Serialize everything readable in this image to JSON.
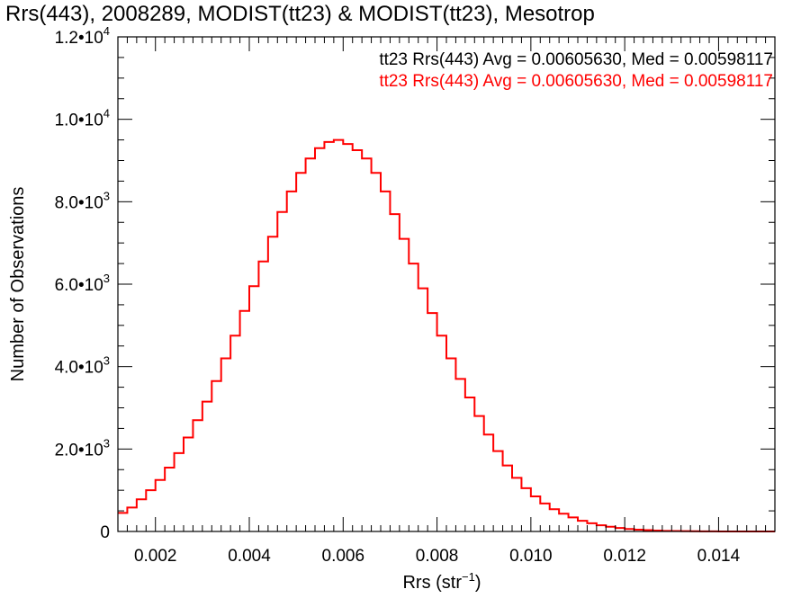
{
  "title": "Rrs(443), 2008289, MODIST(tt23) & MODIST(tt23), Mesotrop",
  "chart_data": {
    "type": "line",
    "title": "Rrs(443), 2008289, MODIST(tt23) & MODIST(tt23), Mesotrop",
    "xlabel": "Rrs (str",
    "xlabel_sup": "−1",
    "xlabel_close": ")",
    "ylabel": "Number of Observations",
    "xlim": [
      0.0012,
      0.0152
    ],
    "ylim": [
      0,
      12000
    ],
    "grid": false,
    "x_ticks": [
      {
        "value": 0.002,
        "label": "0.002"
      },
      {
        "value": 0.004,
        "label": "0.004"
      },
      {
        "value": 0.006,
        "label": "0.006"
      },
      {
        "value": 0.008,
        "label": "0.008"
      },
      {
        "value": 0.01,
        "label": "0.010"
      },
      {
        "value": 0.012,
        "label": "0.012"
      },
      {
        "value": 0.014,
        "label": "0.014"
      }
    ],
    "y_ticks": [
      {
        "value": 0,
        "mant": "0",
        "exp": ""
      },
      {
        "value": 2000,
        "mant": "2.0•10",
        "exp": "3"
      },
      {
        "value": 4000,
        "mant": "4.0•10",
        "exp": "3"
      },
      {
        "value": 6000,
        "mant": "6.0•10",
        "exp": "3"
      },
      {
        "value": 8000,
        "mant": "8.0•10",
        "exp": "3"
      },
      {
        "value": 10000,
        "mant": "1.0•10",
        "exp": "4"
      },
      {
        "value": 12000,
        "mant": "1.2•10",
        "exp": "4"
      }
    ],
    "legend": [
      {
        "text": "tt23 Rrs(443) Avg = 0.00605630, Med = 0.00598117",
        "color": "#000000"
      },
      {
        "text": "tt23 Rrs(443) Avg = 0.00605630, Med = 0.00598117",
        "color": "#ff0000"
      }
    ],
    "legend_position": "top-right",
    "series": [
      {
        "color": "#ff0000",
        "style": "step",
        "x": [
          0.0012,
          0.0014,
          0.0016,
          0.0018,
          0.002,
          0.0022,
          0.0024,
          0.0026,
          0.0028,
          0.003,
          0.0032,
          0.0034,
          0.0036,
          0.0038,
          0.004,
          0.0042,
          0.0044,
          0.0046,
          0.0048,
          0.005,
          0.0052,
          0.0054,
          0.0056,
          0.0058,
          0.006,
          0.0062,
          0.0064,
          0.0066,
          0.0068,
          0.007,
          0.0072,
          0.0074,
          0.0076,
          0.0078,
          0.008,
          0.0082,
          0.0084,
          0.0086,
          0.0088,
          0.009,
          0.0092,
          0.0094,
          0.0096,
          0.0098,
          0.01,
          0.0102,
          0.0104,
          0.0106,
          0.0108,
          0.011,
          0.0112,
          0.0114,
          0.0116,
          0.0118,
          0.012,
          0.0122,
          0.0124,
          0.0126,
          0.0128,
          0.013,
          0.0132,
          0.0134,
          0.0136,
          0.0138,
          0.014,
          0.0142,
          0.0144,
          0.0146,
          0.0148,
          0.015,
          0.0152
        ],
        "y": [
          450,
          580,
          780,
          1000,
          1250,
          1550,
          1900,
          2280,
          2700,
          3150,
          3650,
          4200,
          4750,
          5350,
          5950,
          6550,
          7150,
          7750,
          8250,
          8700,
          9050,
          9300,
          9450,
          9500,
          9400,
          9250,
          9050,
          8700,
          8250,
          7700,
          7100,
          6500,
          5900,
          5300,
          4750,
          4200,
          3700,
          3250,
          2800,
          2350,
          1950,
          1600,
          1300,
          1050,
          850,
          680,
          540,
          430,
          340,
          260,
          200,
          150,
          115,
          85,
          60,
          45,
          32,
          22,
          15,
          10,
          7,
          5,
          3,
          2,
          1,
          1,
          0,
          0,
          0,
          0,
          0
        ]
      }
    ]
  }
}
